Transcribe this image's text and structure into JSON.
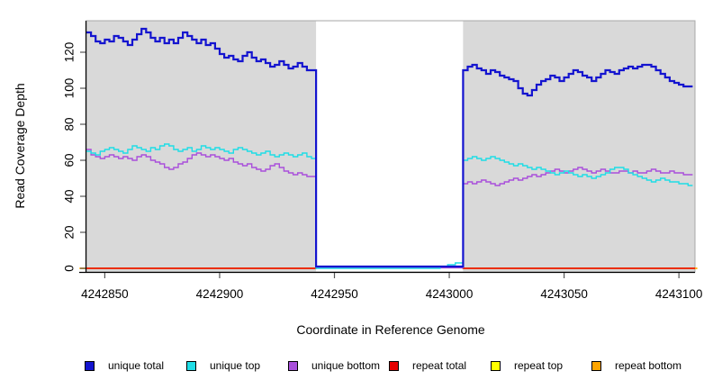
{
  "chart_data": {
    "type": "line",
    "style": "step",
    "title": "",
    "xlabel": "Coordinate in Reference Genome",
    "ylabel": "Read Coverage Depth",
    "xlim": [
      4242842,
      4243107
    ],
    "ylim": [
      0,
      137
    ],
    "x_ticks": [
      4242850,
      4242900,
      4242950,
      4243000,
      4243050,
      4243100
    ],
    "y_ticks": [
      0,
      20,
      40,
      60,
      80,
      100,
      120
    ],
    "grid": false,
    "legend_position": "bottom",
    "panel_background": "#d9d9d9",
    "panel_border": "#a8a8a8",
    "masked_region": {
      "x0": 4242942,
      "x1": 4243006,
      "color": "#ffffff"
    },
    "series": [
      {
        "name": "unique total",
        "color": "#1414cf",
        "width": 2.2,
        "zorder": 6,
        "segments": [
          {
            "x0": 4242842,
            "dx": 2,
            "values": [
              131,
              129,
              126,
              125,
              127,
              126,
              129,
              128,
              126,
              124,
              127,
              130,
              133,
              131,
              128,
              126,
              128,
              125,
              127,
              125,
              128,
              131,
              129,
              127,
              125,
              127,
              124,
              125,
              122,
              119,
              117,
              118,
              116,
              115,
              118,
              120,
              117,
              115,
              116,
              114,
              112,
              113,
              115,
              113,
              111,
              112,
              114,
              112,
              110,
              110
            ]
          },
          {
            "x0": 4242942,
            "dx": 64,
            "values": [
              1
            ]
          },
          {
            "x0": 4243006,
            "dx": 2,
            "values": [
              110,
              112,
              113,
              111,
              110,
              108,
              110,
              109,
              107,
              106,
              105,
              104,
              100,
              97,
              96,
              99,
              102,
              104,
              105,
              107,
              106,
              104,
              106,
              108,
              110,
              109,
              107,
              106,
              104,
              106,
              108,
              110,
              109,
              108,
              110,
              111,
              112,
              111,
              112,
              113,
              113,
              112,
              110,
              108,
              106,
              104,
              103,
              102,
              101,
              101
            ]
          }
        ]
      },
      {
        "name": "unique top",
        "color": "#1fdde6",
        "width": 1.4,
        "zorder": 5,
        "segments": [
          {
            "x0": 4242842,
            "dx": 2,
            "values": [
              65,
              64,
              63,
              65,
              66,
              67,
              66,
              65,
              64,
              66,
              68,
              67,
              66,
              65,
              67,
              66,
              68,
              69,
              68,
              66,
              65,
              66,
              67,
              65,
              66,
              68,
              67,
              66,
              67,
              66,
              65,
              64,
              66,
              67,
              66,
              65,
              64,
              63,
              64,
              65,
              63,
              62,
              63,
              64,
              63,
              62,
              63,
              64,
              62,
              61
            ]
          },
          {
            "x0": 4242942,
            "dx": 54,
            "values": [
              0
            ]
          },
          {
            "x0": 4242996,
            "dx": 3.33,
            "values": [
              1,
              2,
              3
            ]
          },
          {
            "x0": 4243006,
            "dx": 2,
            "values": [
              60,
              61,
              62,
              61,
              60,
              61,
              62,
              61,
              60,
              59,
              58,
              57,
              58,
              57,
              56,
              55,
              56,
              55,
              54,
              53,
              52,
              53,
              54,
              53,
              52,
              51,
              52,
              51,
              50,
              51,
              52,
              53,
              55,
              56,
              56,
              55,
              53,
              52,
              51,
              50,
              49,
              48,
              49,
              50,
              49,
              48,
              48,
              47,
              47,
              46
            ]
          }
        ]
      },
      {
        "name": "unique bottom",
        "color": "#a94fdb",
        "width": 1.4,
        "zorder": 4,
        "segments": [
          {
            "x0": 4242842,
            "dx": 2,
            "values": [
              66,
              63,
              62,
              61,
              62,
              63,
              62,
              61,
              62,
              61,
              60,
              62,
              63,
              62,
              60,
              59,
              58,
              56,
              55,
              56,
              58,
              59,
              61,
              63,
              64,
              63,
              62,
              63,
              62,
              61,
              60,
              61,
              59,
              58,
              57,
              58,
              56,
              55,
              54,
              55,
              57,
              58,
              56,
              54,
              53,
              52,
              53,
              52,
              51,
              51
            ]
          },
          {
            "x0": 4242942,
            "dx": 64,
            "values": [
              0.3
            ]
          },
          {
            "x0": 4243006,
            "dx": 2,
            "values": [
              47,
              48,
              47,
              48,
              49,
              48,
              47,
              46,
              47,
              48,
              49,
              50,
              49,
              50,
              51,
              52,
              51,
              52,
              53,
              54,
              55,
              54,
              53,
              54,
              55,
              56,
              55,
              54,
              53,
              54,
              55,
              54,
              53,
              53,
              54,
              54,
              53,
              54,
              53,
              53,
              54,
              55,
              54,
              53,
              53,
              54,
              53,
              53,
              52,
              52
            ]
          }
        ]
      },
      {
        "name": "repeat total",
        "color": "#e60000",
        "width": 1.4,
        "zorder": 3,
        "segments": [
          {
            "x0": 4242842,
            "dx": 100,
            "values": [
              0
            ]
          },
          {
            "x0": 4242942,
            "dx": 64,
            "values": [
              0.5
            ]
          },
          {
            "x0": 4243006,
            "dx": 101,
            "values": [
              0
            ]
          }
        ]
      },
      {
        "name": "repeat top",
        "color": "#ffff00",
        "width": 1.4,
        "zorder": 1,
        "segments": [
          {
            "x0": 4242842,
            "dx": 100,
            "values": [
              0
            ]
          },
          {
            "x0": 4242942,
            "dx": 64,
            "values": [
              0.5
            ]
          },
          {
            "x0": 4243006,
            "dx": 101,
            "values": [
              0
            ]
          }
        ]
      },
      {
        "name": "repeat bottom",
        "color": "#ffa500",
        "width": 1.7,
        "zorder": 2,
        "broken": true,
        "segments": [
          {
            "x0": 4242839,
            "dx": 103,
            "values": [
              0
            ]
          },
          {
            "x0": 4243006,
            "dx": 102,
            "values": [
              0
            ]
          }
        ]
      }
    ]
  },
  "legend": {
    "items": [
      {
        "label": "unique total"
      },
      {
        "label": "unique top"
      },
      {
        "label": "unique bottom"
      },
      {
        "label": "repeat total"
      },
      {
        "label": "repeat top"
      },
      {
        "label": "repeat bottom"
      }
    ]
  }
}
